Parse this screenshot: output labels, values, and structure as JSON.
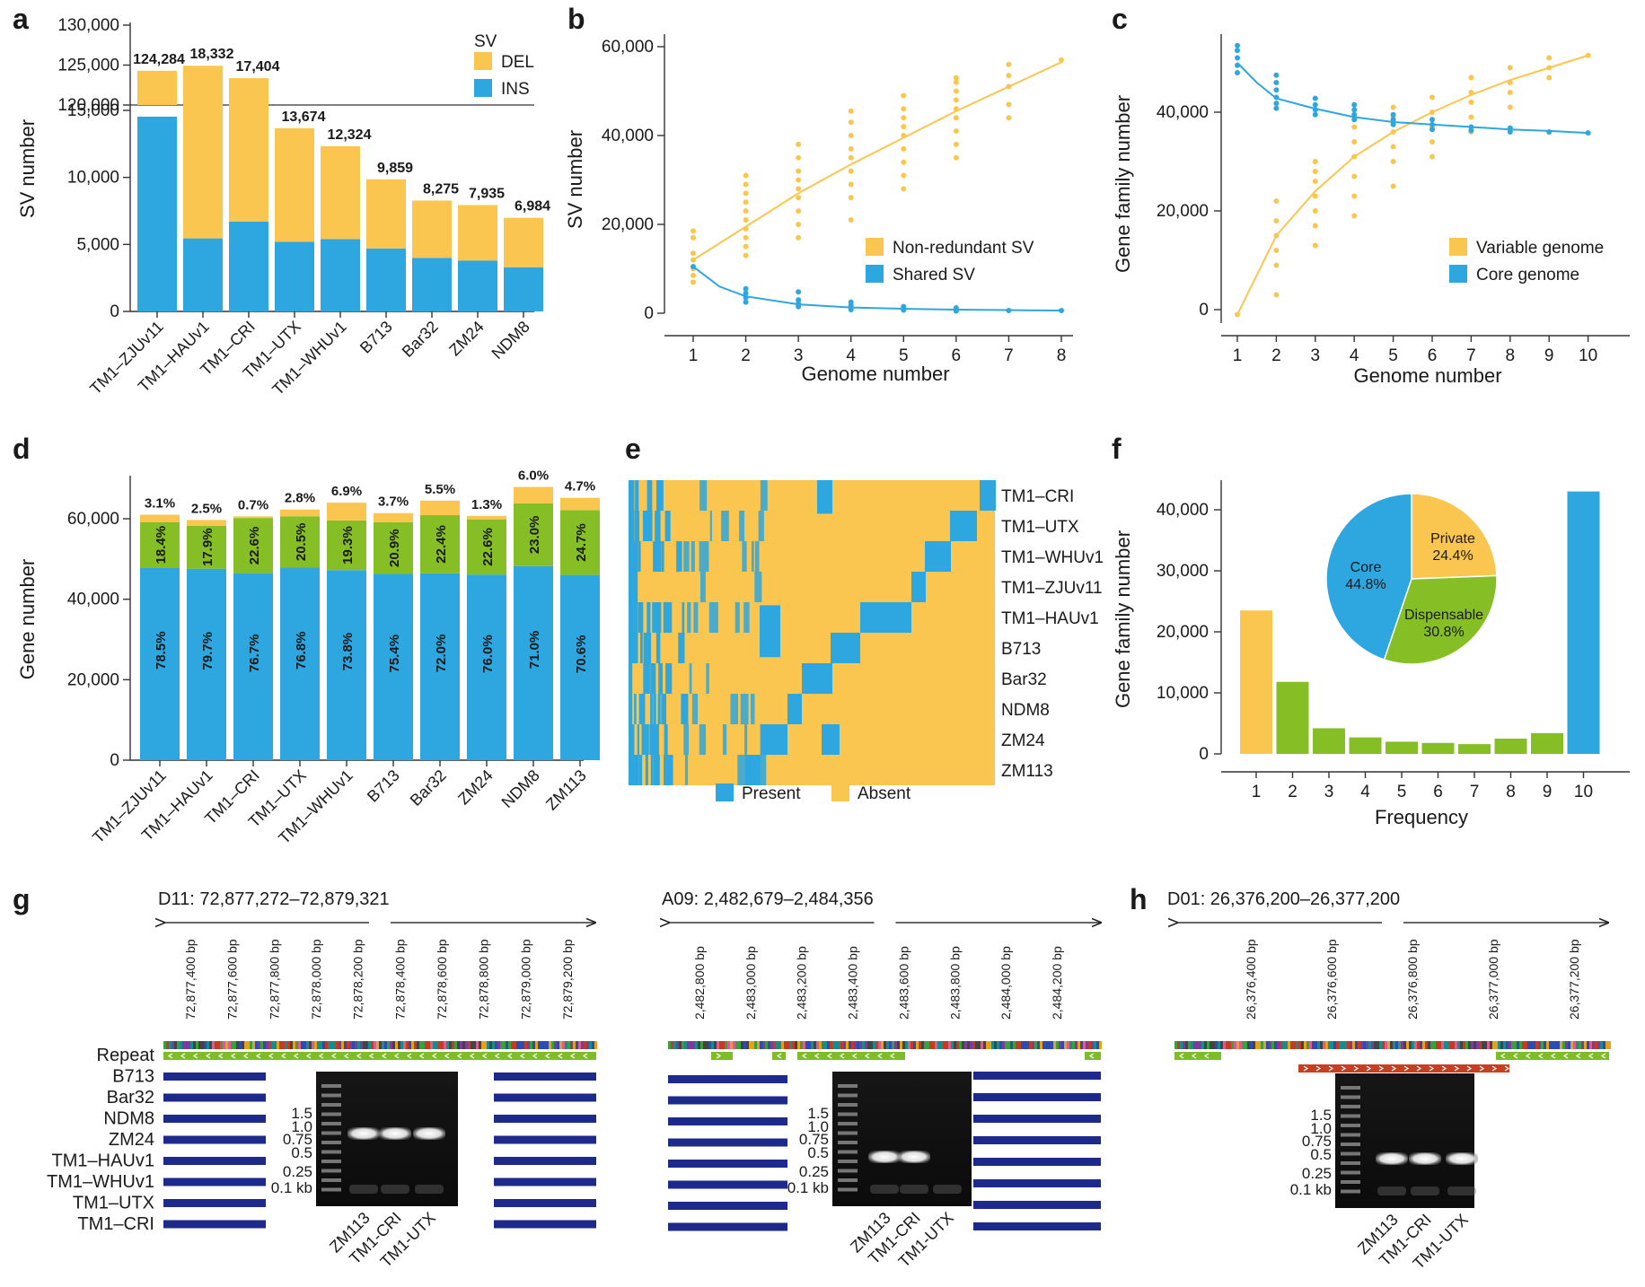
{
  "colors": {
    "yellow": "#FBC650",
    "blue": "#2EA6DF",
    "green": "#86BE26",
    "navy": "#1D2A8C",
    "red": "#C6401F",
    "repeat_green": "#7FBC29"
  },
  "panel_labels": [
    "a",
    "b",
    "c",
    "d",
    "e",
    "f",
    "g",
    "h"
  ],
  "chart_data": [
    {
      "panel": "a",
      "type": "bar",
      "stacked": true,
      "axis_break": true,
      "categories": [
        "TM1–ZJUv11",
        "TM1–HAUv1",
        "TM1–CRI",
        "TM1–UTX",
        "TM1–WHUv1",
        "B713",
        "Bar32",
        "ZM24",
        "NDM8"
      ],
      "series": [
        {
          "name": "INS",
          "values": [
            119600,
            5450,
            6700,
            5200,
            5400,
            4700,
            4000,
            3800,
            3300
          ]
        },
        {
          "name": "DEL",
          "values": [
            4684,
            12882,
            10704,
            8474,
            6924,
            5159,
            4275,
            4135,
            3684
          ]
        }
      ],
      "totals": [
        "124,284",
        "18,332",
        "17,404",
        "13,674",
        "12,324",
        "9,859",
        "8,275",
        "7,935",
        "6,984"
      ],
      "ylabel": "SV number",
      "lower_ticks": [
        "0",
        "5,000",
        "10,000",
        "15,000"
      ],
      "upper_ticks": [
        "120,000",
        "125,000",
        "130,000"
      ],
      "legend_title": "SV",
      "legend": [
        "DEL",
        "INS"
      ]
    },
    {
      "panel": "b",
      "type": "scatter",
      "x": [
        1,
        2,
        3,
        4,
        5,
        6,
        7,
        8
      ],
      "series": [
        {
          "name": "Non-redundant SV",
          "points": [
            [
              1,
              7000
            ],
            [
              1,
              8500
            ],
            [
              1,
              10000
            ],
            [
              1,
              12000
            ],
            [
              1,
              13500
            ],
            [
              1,
              17000
            ],
            [
              1,
              18500
            ],
            [
              2,
              13000
            ],
            [
              2,
              15000
            ],
            [
              2,
              17000
            ],
            [
              2,
              19000
            ],
            [
              2,
              21000
            ],
            [
              2,
              23000
            ],
            [
              2,
              25000
            ],
            [
              2,
              27000
            ],
            [
              2,
              29000
            ],
            [
              2,
              31000
            ],
            [
              3,
              17000
            ],
            [
              3,
              20000
            ],
            [
              3,
              23000
            ],
            [
              3,
              26000
            ],
            [
              3,
              28000
            ],
            [
              3,
              30000
            ],
            [
              3,
              32000
            ],
            [
              3,
              35000
            ],
            [
              3,
              38000
            ],
            [
              4,
              21000
            ],
            [
              4,
              26000
            ],
            [
              4,
              29000
            ],
            [
              4,
              32000
            ],
            [
              4,
              35000
            ],
            [
              4,
              37000
            ],
            [
              4,
              40000
            ],
            [
              4,
              43000
            ],
            [
              4,
              45500
            ],
            [
              5,
              28000
            ],
            [
              5,
              31000
            ],
            [
              5,
              34000
            ],
            [
              5,
              37000
            ],
            [
              5,
              40000
            ],
            [
              5,
              42000
            ],
            [
              5,
              44000
            ],
            [
              5,
              46000
            ],
            [
              5,
              49000
            ],
            [
              6,
              35000
            ],
            [
              6,
              38000
            ],
            [
              6,
              41000
            ],
            [
              6,
              44000
            ],
            [
              6,
              46000
            ],
            [
              6,
              48000
            ],
            [
              6,
              50000
            ],
            [
              6,
              52000
            ],
            [
              6,
              53000
            ],
            [
              7,
              44000
            ],
            [
              7,
              47000
            ],
            [
              7,
              51000
            ],
            [
              7,
              53500
            ],
            [
              7,
              56000
            ],
            [
              8,
              57000
            ]
          ],
          "curve": [
            [
              1,
              12000
            ],
            [
              2,
              19500
            ],
            [
              3,
              27000
            ],
            [
              4,
              33500
            ],
            [
              5,
              39500
            ],
            [
              6,
              45500
            ],
            [
              7,
              51000
            ],
            [
              8,
              56500
            ]
          ]
        },
        {
          "name": "Shared SV",
          "points": [
            [
              1,
              10500
            ],
            [
              2,
              2500
            ],
            [
              2,
              3500
            ],
            [
              2,
              4500
            ],
            [
              2,
              5500
            ],
            [
              3,
              1500
            ],
            [
              3,
              2200
            ],
            [
              3,
              3000
            ],
            [
              3,
              4800
            ],
            [
              4,
              800
            ],
            [
              4,
              1200
            ],
            [
              4,
              1800
            ],
            [
              4,
              2500
            ],
            [
              5,
              700
            ],
            [
              5,
              1000
            ],
            [
              5,
              1500
            ],
            [
              6,
              500
            ],
            [
              6,
              800
            ],
            [
              6,
              1200
            ],
            [
              7,
              600
            ],
            [
              8,
              600
            ]
          ],
          "curve": [
            [
              1,
              10500
            ],
            [
              1.5,
              6000
            ],
            [
              2,
              3800
            ],
            [
              3,
              2000
            ],
            [
              4,
              1300
            ],
            [
              5,
              1000
            ],
            [
              6,
              800
            ],
            [
              7,
              700
            ],
            [
              8,
              600
            ]
          ]
        }
      ],
      "xlabel": "Genome number",
      "ylabel": "SV number",
      "yticks": [
        "0",
        "20,000",
        "40,000",
        "60,000"
      ],
      "xticks": [
        "1",
        "2",
        "3",
        "4",
        "5",
        "6",
        "7",
        "8"
      ],
      "legend": [
        "Non-redundant SV",
        "Shared SV"
      ]
    },
    {
      "panel": "c",
      "type": "scatter",
      "series": [
        {
          "name": "Variable genome",
          "curve": [
            [
              1,
              -1000
            ],
            [
              2,
              15000
            ],
            [
              3,
              24000
            ],
            [
              4,
              31000
            ],
            [
              5,
              36000
            ],
            [
              6,
              40000
            ],
            [
              7,
              43500
            ],
            [
              8,
              46500
            ],
            [
              9,
              49000
            ],
            [
              10,
              51500
            ]
          ],
          "points": [
            [
              1,
              -1000
            ],
            [
              2,
              3000
            ],
            [
              2,
              9000
            ],
            [
              2,
              12000
            ],
            [
              2,
              15000
            ],
            [
              2,
              18000
            ],
            [
              2,
              22000
            ],
            [
              3,
              13000
            ],
            [
              3,
              17000
            ],
            [
              3,
              20000
            ],
            [
              3,
              23000
            ],
            [
              3,
              26000
            ],
            [
              3,
              28000
            ],
            [
              3,
              30000
            ],
            [
              4,
              19000
            ],
            [
              4,
              23000
            ],
            [
              4,
              27000
            ],
            [
              4,
              31000
            ],
            [
              4,
              34000
            ],
            [
              4,
              37000
            ],
            [
              5,
              25000
            ],
            [
              5,
              30000
            ],
            [
              5,
              33000
            ],
            [
              5,
              36000
            ],
            [
              5,
              39000
            ],
            [
              5,
              41000
            ],
            [
              6,
              31000
            ],
            [
              6,
              34000
            ],
            [
              6,
              37000
            ],
            [
              6,
              40000
            ],
            [
              6,
              43000
            ],
            [
              7,
              36000
            ],
            [
              7,
              39000
            ],
            [
              7,
              42000
            ],
            [
              7,
              44000
            ],
            [
              7,
              47000
            ],
            [
              8,
              41000
            ],
            [
              8,
              44000
            ],
            [
              8,
              46000
            ],
            [
              8,
              49000
            ],
            [
              9,
              47000
            ],
            [
              9,
              49000
            ],
            [
              9,
              51000
            ],
            [
              10,
              51500
            ]
          ]
        },
        {
          "name": "Core genome",
          "curve": [
            [
              1,
              50000
            ],
            [
              1.5,
              46000
            ],
            [
              2,
              42800
            ],
            [
              3,
              40700
            ],
            [
              4,
              39000
            ],
            [
              5,
              38000
            ],
            [
              6,
              37500
            ],
            [
              7,
              37000
            ],
            [
              8,
              36500
            ],
            [
              9,
              36200
            ],
            [
              10,
              35800
            ]
          ],
          "points": [
            [
              1,
              48000
            ],
            [
              1,
              49500
            ],
            [
              1,
              51000
            ],
            [
              1,
              52500
            ],
            [
              1,
              53500
            ],
            [
              2,
              40800
            ],
            [
              2,
              41800
            ],
            [
              2,
              43000
            ],
            [
              2,
              44500
            ],
            [
              2,
              46000
            ],
            [
              2,
              47500
            ],
            [
              3,
              39500
            ],
            [
              3,
              40500
            ],
            [
              3,
              41500
            ],
            [
              3,
              42800
            ],
            [
              4,
              38500
            ],
            [
              4,
              39500
            ],
            [
              4,
              40500
            ],
            [
              4,
              41500
            ],
            [
              5,
              37500
            ],
            [
              5,
              38500
            ],
            [
              5,
              39500
            ],
            [
              6,
              36500
            ],
            [
              6,
              37500
            ],
            [
              6,
              38500
            ],
            [
              7,
              36300
            ],
            [
              7,
              37000
            ],
            [
              8,
              36000
            ],
            [
              8,
              36800
            ],
            [
              9,
              36000
            ],
            [
              10,
              35800
            ]
          ]
        }
      ],
      "xlabel": "Genome number",
      "ylabel": "Gene family number",
      "yticks": [
        "0",
        "20,000",
        "40,000"
      ],
      "xticks": [
        "1",
        "2",
        "3",
        "4",
        "5",
        "6",
        "7",
        "8",
        "9",
        "10"
      ],
      "legend": [
        "Variable genome",
        "Core genome"
      ]
    },
    {
      "panel": "d",
      "type": "bar",
      "stacked": true,
      "categories": [
        "TM1–ZJUv11",
        "TM1–HAUv1",
        "TM1–CRI",
        "TM1–UTX",
        "TM1–WHUv1",
        "B713",
        "Bar32",
        "ZM24",
        "NDM8",
        "ZM113"
      ],
      "totals": [
        61000,
        59700,
        60600,
        62300,
        64000,
        61400,
        64500,
        60700,
        67900,
        65200
      ],
      "core_pct": [
        "78.5%",
        "79.7%",
        "76.7%",
        "76.8%",
        "73.8%",
        "75.4%",
        "72.0%",
        "76.0%",
        "71.0%",
        "70.6%"
      ],
      "disp_pct": [
        "18.4%",
        "17.9%",
        "22.6%",
        "20.5%",
        "19.3%",
        "20.9%",
        "22.4%",
        "22.6%",
        "23.0%",
        "24.7%"
      ],
      "priv_pct": [
        "3.1%",
        "2.5%",
        "0.7%",
        "2.8%",
        "6.9%",
        "3.7%",
        "5.5%",
        "1.3%",
        "6.0%",
        "4.7%"
      ],
      "ylabel": "Gene number",
      "yticks": [
        "0",
        "20,000",
        "40,000",
        "60,000"
      ]
    },
    {
      "panel": "e",
      "type": "heatmap",
      "rows": [
        "TM1–CRI",
        "TM1–UTX",
        "TM1–WHUv1",
        "TM1–ZJUv11",
        "TM1–HAUv1",
        "B713",
        "Bar32",
        "NDM8",
        "ZM24",
        "ZM113"
      ],
      "legend": [
        "Present",
        "Absent"
      ]
    },
    {
      "panel": "f",
      "type": "bar",
      "categories": [
        "1",
        "2",
        "3",
        "4",
        "5",
        "6",
        "7",
        "8",
        "9",
        "10"
      ],
      "values": [
        23500,
        11800,
        4200,
        2700,
        2000,
        1800,
        1600,
        2500,
        3400,
        43000
      ],
      "xlabel": "Frequency",
      "ylabel": "Gene family number",
      "yticks": [
        "0",
        "10,000",
        "20,000",
        "30,000",
        "40,000"
      ],
      "pie": [
        {
          "label": "Private",
          "pct": "24.4%",
          "value": 24.4
        },
        {
          "label": "Dispensable",
          "pct": "30.8%",
          "value": 30.8
        },
        {
          "label": "Core",
          "pct": "44.8%",
          "value": 44.8
        }
      ]
    }
  ],
  "panel_g": {
    "left": {
      "title": "D11: 72,877,272–72,879,321",
      "ticks": [
        "72,877,400 bp",
        "72,877,600 bp",
        "72,877,800 bp",
        "72,878,000 bp",
        "72,878,200 bp",
        "72,878,400 bp",
        "72,878,600 bp",
        "72,878,800 bp",
        "72,879,000 bp",
        "72,879,200 bp"
      ]
    },
    "right": {
      "title": "A09: 2,482,679–2,484,356",
      "ticks": [
        "2,482,800 bp",
        "2,483,000 bp",
        "2,483,200 bp",
        "2,483,400 bp",
        "2,483,600 bp",
        "2,483,800 bp",
        "2,484,000 bp",
        "2,484,200 bp"
      ]
    },
    "row_labels": [
      "Repeat",
      "B713",
      "Bar32",
      "NDM8",
      "ZM24",
      "TM1–HAUv1",
      "TM1–WHUv1",
      "TM1–UTX",
      "TM1–CRI"
    ],
    "ladder": [
      "1.5",
      "1.0",
      "0.75",
      "0.5",
      "0.25",
      "0.1 kb"
    ],
    "lanes": [
      "ZM113",
      "TM1-CRI",
      "TM1-UTX"
    ]
  },
  "panel_h": {
    "title": "D01: 26,376,200–26,377,200",
    "ticks": [
      "26,376,400 bp",
      "26,376,600 bp",
      "26,376,800 bp",
      "26,377,000 bp",
      "26,377,200 bp"
    ],
    "ladder": [
      "1.5",
      "1.0",
      "0.75",
      "0.5",
      "0.25",
      "0.1 kb"
    ],
    "lanes": [
      "ZM113",
      "TM1-CRI",
      "TM1-UTX"
    ]
  }
}
